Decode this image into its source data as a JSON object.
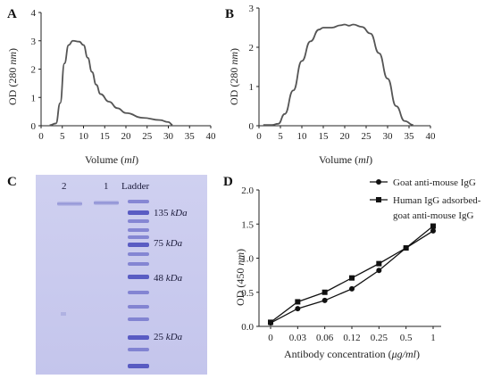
{
  "panels": [
    "A",
    "B",
    "C",
    "D"
  ],
  "chart_data": [
    {
      "id": "A",
      "type": "line",
      "xlabel_main": "Volume (",
      "xlabel_unit": "ml",
      "xlabel_end": ")",
      "ylabel_main": "OD (280 ",
      "ylabel_unit": "nm",
      "ylabel_end": ")",
      "xlim": [
        0,
        40
      ],
      "ylim": [
        0,
        4
      ],
      "xticks": [
        0,
        5,
        10,
        15,
        20,
        25,
        30,
        35,
        40
      ],
      "yticks": [
        0,
        1,
        2,
        3,
        4
      ],
      "series": [
        {
          "x": [
            2,
            3.5,
            4.5,
            5.5,
            6.5,
            7.5,
            9,
            10,
            11,
            12,
            13,
            14,
            16,
            18,
            20,
            24,
            28,
            30,
            31
          ],
          "y": [
            0.02,
            0.08,
            0.8,
            2.2,
            2.85,
            3.0,
            2.97,
            2.85,
            2.4,
            1.9,
            1.45,
            1.12,
            0.85,
            0.62,
            0.45,
            0.28,
            0.2,
            0.13,
            0.03
          ]
        }
      ]
    },
    {
      "id": "B",
      "type": "line",
      "xlabel_main": "Volume (",
      "xlabel_unit": "ml",
      "xlabel_end": ")",
      "ylabel_main": "OD (280 ",
      "ylabel_unit": "nm",
      "ylabel_end": ")",
      "xlim": [
        0,
        40
      ],
      "ylim": [
        0,
        3
      ],
      "xticks": [
        0,
        5,
        10,
        15,
        20,
        25,
        30,
        35,
        40
      ],
      "yticks": [
        0,
        1,
        2,
        3
      ],
      "series": [
        {
          "x": [
            1,
            3,
            4.5,
            6,
            8,
            10,
            12,
            14,
            15,
            17,
            19,
            20,
            21,
            22,
            24,
            26,
            28,
            30,
            32,
            34,
            36
          ],
          "y": [
            0.02,
            0.02,
            0.05,
            0.3,
            0.9,
            1.65,
            2.15,
            2.45,
            2.5,
            2.5,
            2.56,
            2.58,
            2.55,
            2.58,
            2.52,
            2.35,
            1.85,
            1.2,
            0.5,
            0.12,
            0.02
          ]
        }
      ]
    },
    {
      "id": "C",
      "type": "gel",
      "lane_labels": [
        "2",
        "1",
        "Ladder"
      ],
      "markers": [
        {
          "main": "135 ",
          "unit": "kDa"
        },
        {
          "main": "75 ",
          "unit": "kDa"
        },
        {
          "main": "48 ",
          "unit": "kDa"
        },
        {
          "main": "25 ",
          "unit": "kDa"
        }
      ]
    },
    {
      "id": "D",
      "type": "line",
      "categories": [
        "0",
        "0.03",
        "0.06",
        "0.12",
        "0.25",
        "0.5",
        "1"
      ],
      "xlabel_main": "Antibody concentration (",
      "xlabel_unit": "μg/ml",
      "xlabel_end": ")",
      "ylabel_main": "OD (450 ",
      "ylabel_unit": "nm",
      "ylabel_end": ")",
      "ylim": [
        0,
        2.0
      ],
      "yticks": [
        "0.0",
        "0.5",
        "1.0",
        "1.5",
        "2.0"
      ],
      "series": [
        {
          "name": "Goat anti-mouse IgG",
          "marker": "circle",
          "values": [
            0.05,
            0.26,
            0.38,
            0.55,
            0.82,
            1.15,
            1.4
          ]
        },
        {
          "name": "Human IgG adsorbed-goat anti-mouse IgG",
          "marker": "square",
          "values": [
            0.06,
            0.36,
            0.5,
            0.71,
            0.92,
            1.15,
            1.47
          ]
        }
      ],
      "legend_lines": [
        "Goat anti-mouse IgG",
        "Human IgG adsorbed-",
        "goat anti-mouse IgG"
      ]
    }
  ]
}
